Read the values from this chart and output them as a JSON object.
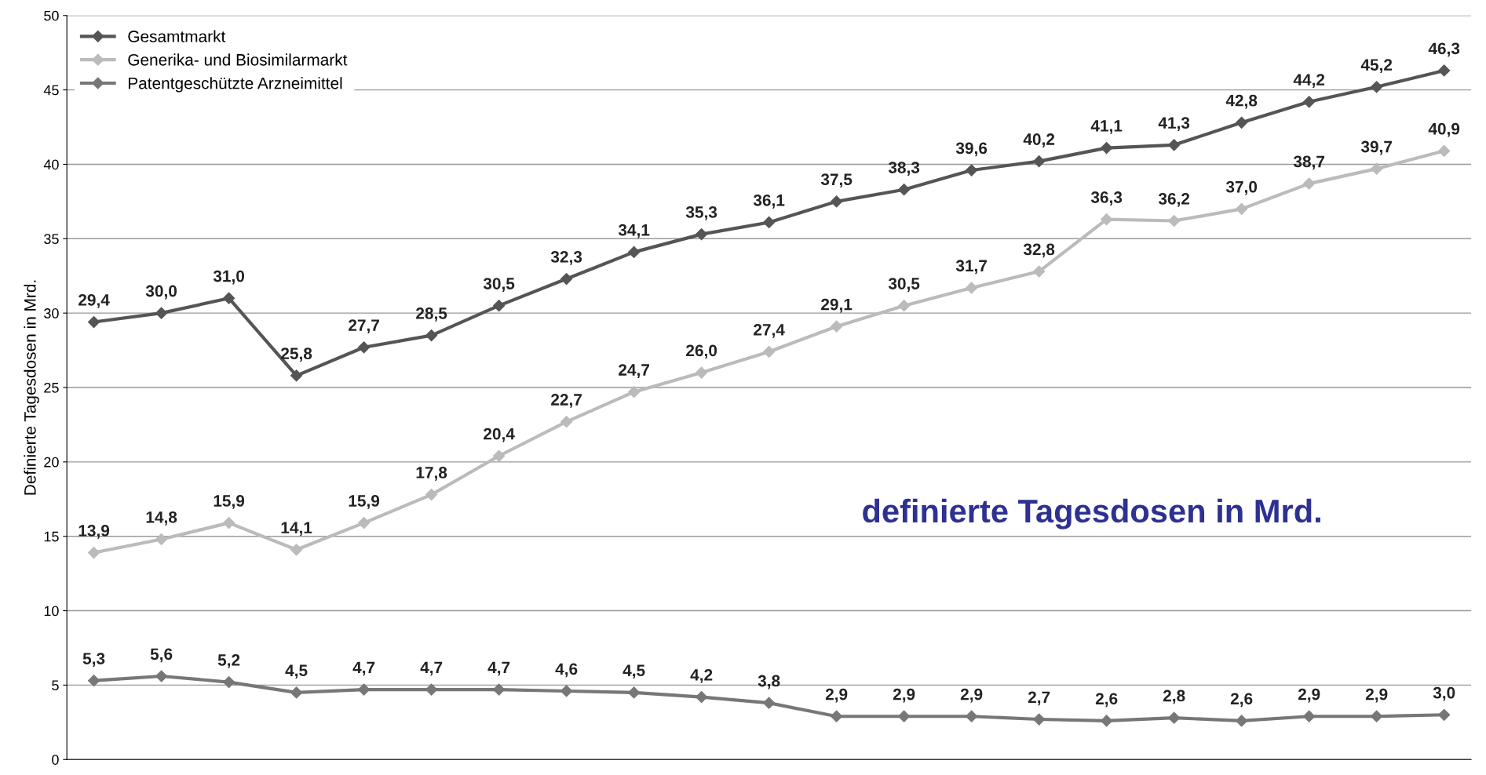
{
  "chart_data": {
    "type": "line",
    "ylabel": "Definierte Tagesdosen in Mrd.",
    "categories": [
      null,
      null,
      null,
      null,
      null,
      null,
      null,
      null,
      null,
      null,
      null,
      null,
      null,
      null,
      null,
      null,
      null,
      null,
      null,
      null,
      null
    ],
    "series": [
      {
        "name": "Gesamtmarkt",
        "color": "#555555",
        "values": [
          29.4,
          30.0,
          31.0,
          25.8,
          27.7,
          28.5,
          30.5,
          32.3,
          34.1,
          35.3,
          36.1,
          37.5,
          38.3,
          39.6,
          40.2,
          41.1,
          41.3,
          42.8,
          44.2,
          45.2,
          46.3
        ],
        "value_labels": [
          "29,4",
          "30,0",
          "31,0",
          "25,8",
          "27,7",
          "28,5",
          "30,5",
          "32,3",
          "34,1",
          "35,3",
          "36,1",
          "37,5",
          "38,3",
          "39,6",
          "40,2",
          "41,1",
          "41,3",
          "42,8",
          "44,2",
          "45,2",
          "46,3"
        ]
      },
      {
        "name": "Generika- und Biosimilarmarkt",
        "color": "#bbbbbb",
        "values": [
          13.9,
          14.8,
          15.9,
          14.1,
          15.9,
          17.8,
          20.4,
          22.7,
          24.7,
          26.0,
          27.4,
          29.1,
          30.5,
          31.7,
          32.8,
          36.3,
          36.2,
          37.0,
          38.7,
          39.7,
          40.9
        ],
        "value_labels": [
          "13,9",
          "14,8",
          "15,9",
          "14,1",
          "15,9",
          "17,8",
          "20,4",
          "22,7",
          "24,7",
          "26,0",
          "27,4",
          "29,1",
          "30,5",
          "31,7",
          "32,8",
          "36,3",
          "36,2",
          "37,0",
          "38,7",
          "39,7",
          "40,9"
        ]
      },
      {
        "name": "Patentgeschützte Arzneimittel",
        "color": "#777777",
        "values": [
          5.3,
          5.6,
          5.2,
          4.5,
          4.7,
          4.7,
          4.7,
          4.6,
          4.5,
          4.2,
          3.8,
          2.9,
          2.9,
          2.9,
          2.7,
          2.6,
          2.8,
          2.6,
          2.9,
          2.9,
          3.0
        ],
        "value_labels": [
          "5,3",
          "5,6",
          "5,2",
          "4,5",
          "4,7",
          "4,7",
          "4,7",
          "4,6",
          "4,5",
          "4,2",
          "3,8",
          "2,9",
          "2,9",
          "2,9",
          "2,7",
          "2,6",
          "2,8",
          "2,6",
          "2,9",
          "2,9",
          "3,0"
        ]
      }
    ],
    "ylim": [
      0,
      50
    ],
    "yticks": [
      0,
      5,
      10,
      15,
      20,
      25,
      30,
      35,
      40,
      45,
      50
    ],
    "grid": "y",
    "legend": "top left",
    "marker": "diamond",
    "line_style": "solid",
    "annotations": [
      "definierte Tagesdosen in Mrd."
    ]
  }
}
